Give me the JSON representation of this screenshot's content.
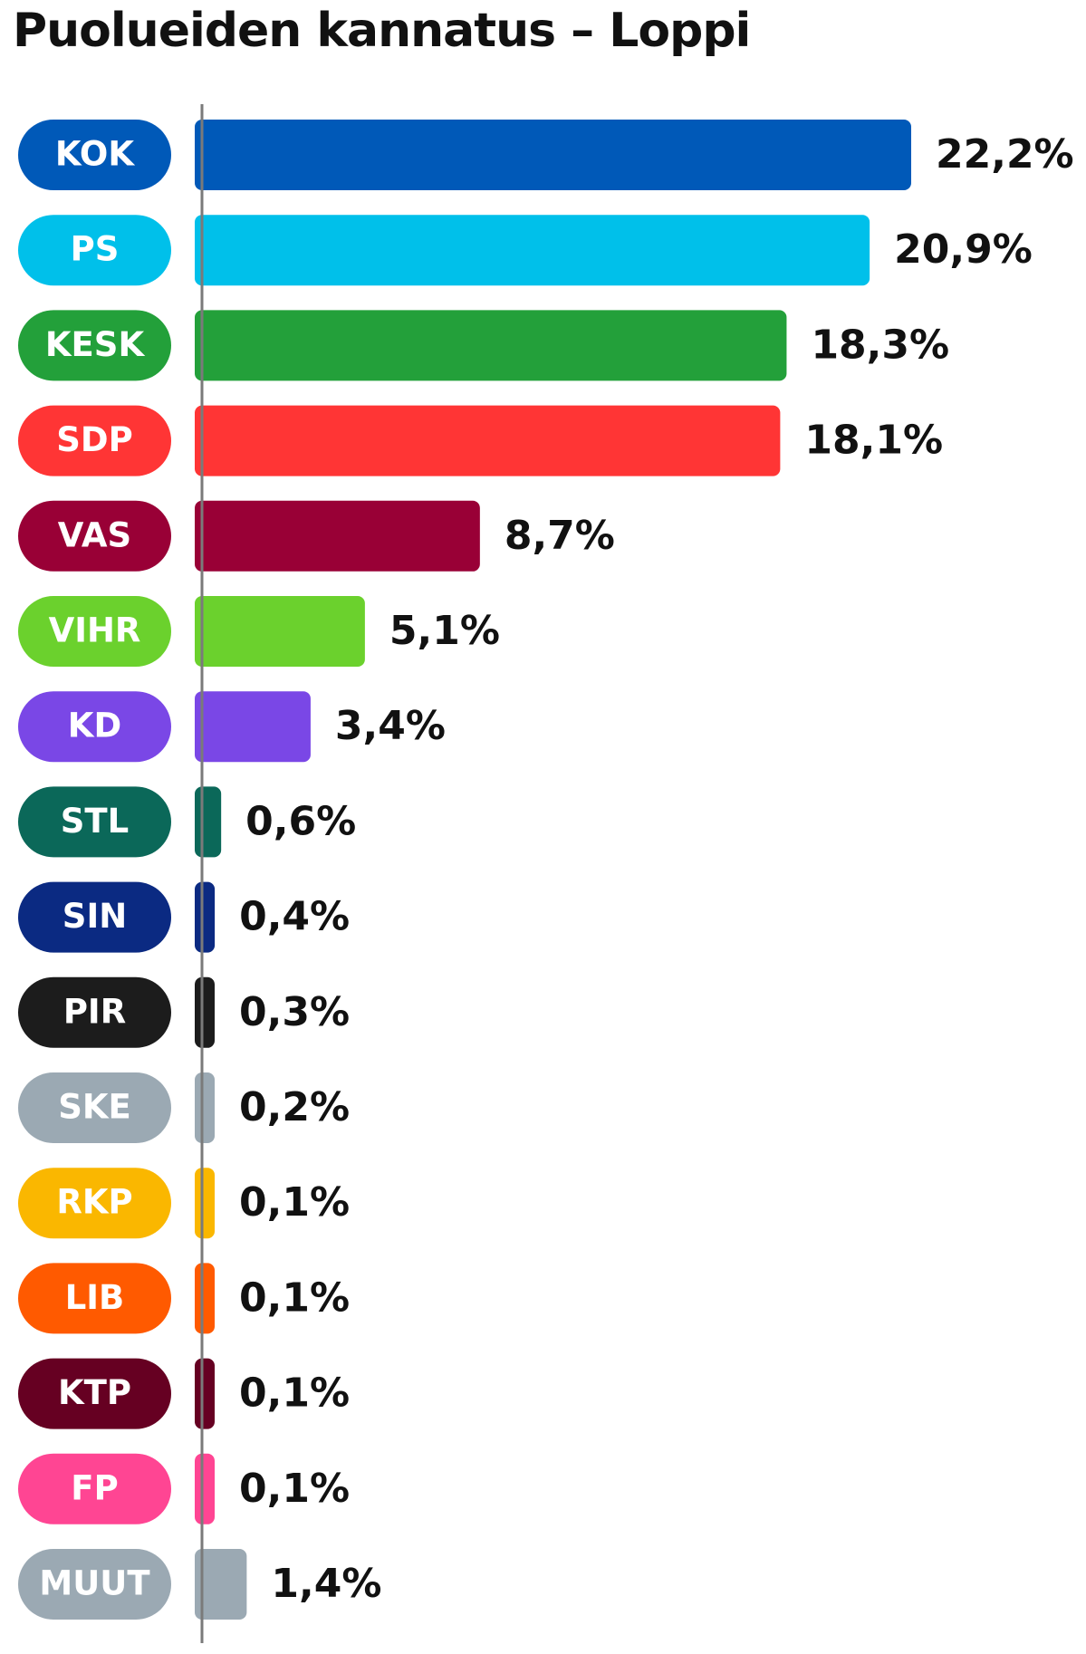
{
  "chart_data": {
    "type": "bar",
    "orientation": "horizontal",
    "title": "Puolueiden kannatus – Loppi",
    "xlabel": "",
    "ylabel": "",
    "unit": "%",
    "grid": false,
    "legend": "none",
    "xlim": [
      0,
      22.2
    ],
    "categories": [
      "KOK",
      "PS",
      "KESK",
      "SDP",
      "VAS",
      "VIHR",
      "KD",
      "STL",
      "SIN",
      "PIR",
      "SKE",
      "RKP",
      "LIB",
      "KTP",
      "FP",
      "MUUT"
    ],
    "values": [
      22.2,
      20.9,
      18.3,
      18.1,
      8.7,
      5.1,
      3.4,
      0.6,
      0.4,
      0.3,
      0.2,
      0.1,
      0.1,
      0.1,
      0.1,
      1.4
    ],
    "value_labels": [
      "22,2%",
      "20,9%",
      "18,3%",
      "18,1%",
      "8,7%",
      "5,1%",
      "3,4%",
      "0,6%",
      "0,4%",
      "0,3%",
      "0,2%",
      "0,1%",
      "0,1%",
      "0,1%",
      "0,1%",
      "1,4%"
    ],
    "colors": [
      "#0059b8",
      "#00c0ea",
      "#23a03a",
      "#ff3535",
      "#990036",
      "#6bd12d",
      "#7a47e6",
      "#0b6859",
      "#0b2a82",
      "#1c1c1c",
      "#9ba9b3",
      "#fab700",
      "#ff5a00",
      "#660022",
      "#ff4593",
      "#9ba9b3"
    ]
  }
}
